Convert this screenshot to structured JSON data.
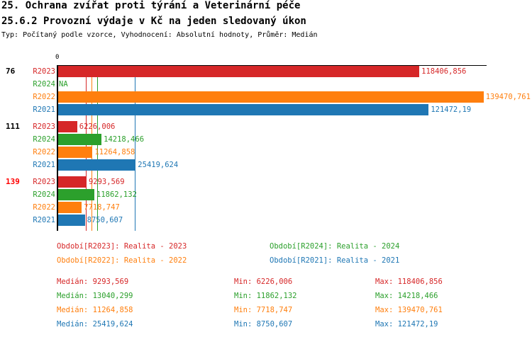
{
  "title": "25. Ochrana zvířat proti týrání a Veterinární péče",
  "subtitle": "25.6.2 Provozní výdaje v Kč na jeden sledovaný úkon",
  "info": "Typ: Počítaný podle vzorce, Vyhodnocení: Absolutní hodnoty, Průměr: Medián",
  "chart_data": {
    "type": "bar",
    "orientation": "horizontal",
    "x_tick_labels": [
      "0"
    ],
    "groups": [
      {
        "label": "76",
        "highlight": false,
        "rows": [
          {
            "series": "R2023",
            "value": 118406.856,
            "label": "118406,856"
          },
          {
            "series": "R2024",
            "value": null,
            "label": "NA"
          },
          {
            "series": "R2022",
            "value": 139470.761,
            "label": "139470,761"
          },
          {
            "series": "R2021",
            "value": 121472.19,
            "label": "121472,19"
          }
        ]
      },
      {
        "label": "111",
        "highlight": false,
        "rows": [
          {
            "series": "R2023",
            "value": 6226.006,
            "label": "6226,006"
          },
          {
            "series": "R2024",
            "value": 14218.466,
            "label": "14218,466"
          },
          {
            "series": "R2022",
            "value": 11264.858,
            "label": "11264,858"
          },
          {
            "series": "R2021",
            "value": 25419.624,
            "label": "25419,624"
          }
        ]
      },
      {
        "label": "139",
        "highlight": true,
        "rows": [
          {
            "series": "R2023",
            "value": 9293.569,
            "label": "9293,569"
          },
          {
            "series": "R2024",
            "value": 11862.132,
            "label": "11862,132"
          },
          {
            "series": "R2022",
            "value": 7718.747,
            "label": "7718,747"
          },
          {
            "series": "R2021",
            "value": 8750.607,
            "label": "8750,607"
          }
        ]
      }
    ],
    "series_colors": {
      "R2023": "#d62728",
      "R2024": "#2ca02c",
      "R2022": "#ff7f0e",
      "R2021": "#1f77b4"
    },
    "highlight_color": "#ff0000",
    "median_lines": [
      {
        "series": "R2023",
        "value": 9293.569
      },
      {
        "series": "R2022",
        "value": 11264.858
      },
      {
        "series": "R2024",
        "value": 13040.299
      },
      {
        "series": "R2021",
        "value": 25419.624
      }
    ]
  },
  "legend": [
    {
      "series": "R2023",
      "label": "Období[R2023]: Realita - 2023"
    },
    {
      "series": "R2024",
      "label": "Období[R2024]: Realita - 2024"
    },
    {
      "series": "R2022",
      "label": "Období[R2022]: Realita - 2022"
    },
    {
      "series": "R2021",
      "label": "Období[R2021]: Realita - 2021"
    }
  ],
  "stats": [
    {
      "series": "R2023",
      "median": "Medián: 9293,569",
      "min": "Min: 6226,006",
      "max": "Max: 118406,856"
    },
    {
      "series": "R2024",
      "median": "Medián: 13040,299",
      "min": "Min: 11862,132",
      "max": "Max: 14218,466"
    },
    {
      "series": "R2022",
      "median": "Medián: 11264,858",
      "min": "Min: 7718,747",
      "max": "Max: 139470,761"
    },
    {
      "series": "R2021",
      "median": "Medián: 25419,624",
      "min": "Min: 8750,607",
      "max": "Max: 121472,19"
    }
  ]
}
